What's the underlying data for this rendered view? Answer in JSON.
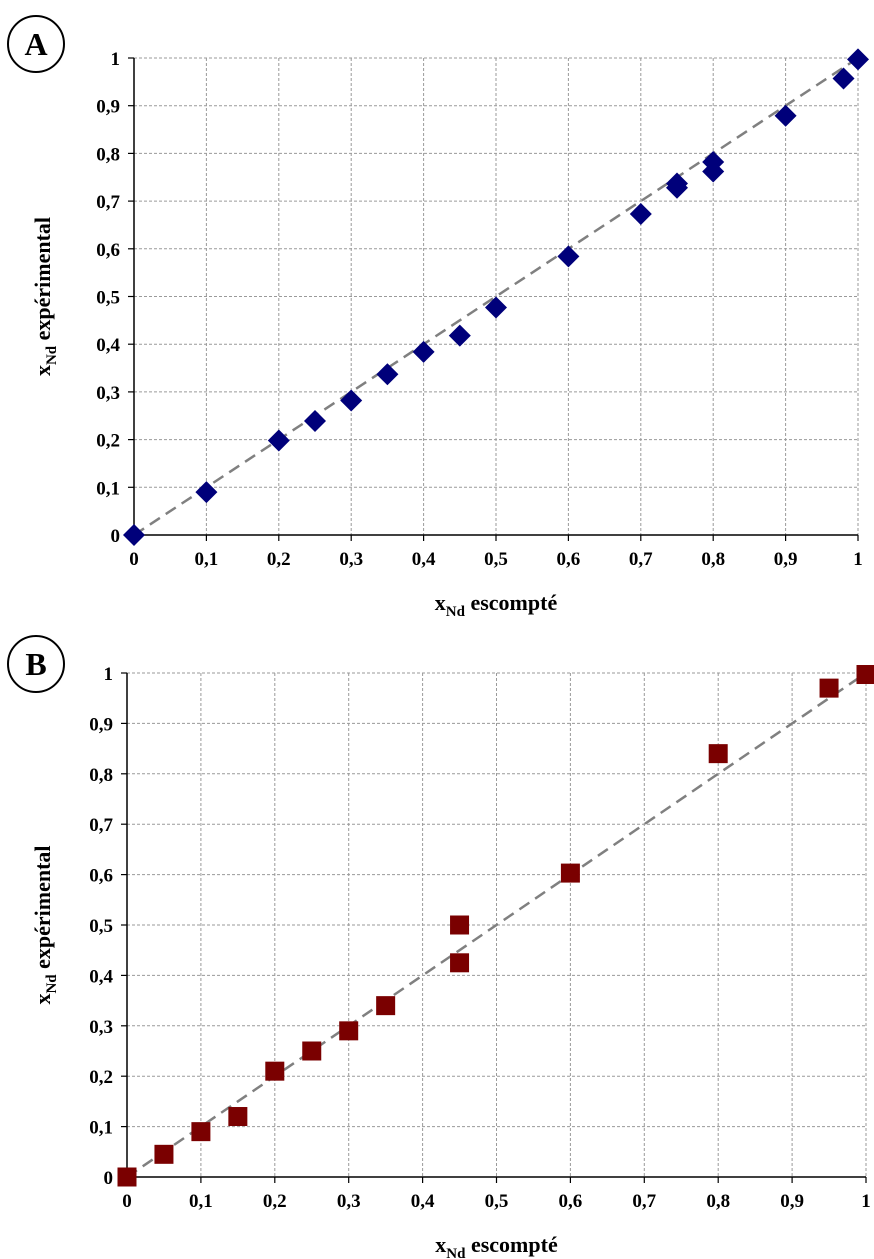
{
  "colors": {
    "panel_a_marker": "#00007a",
    "panel_b_marker": "#7a0000",
    "grid": "#9a9a9a",
    "reference_line": "#808080"
  },
  "chart_data": [
    {
      "panel_label": "A",
      "type": "scatter",
      "marker": "diamond",
      "xlabel_main": "x",
      "xlabel_sub": "Nd",
      "xlabel_rest": " escompté",
      "ylabel_main": "x",
      "ylabel_sub": "Nd",
      "ylabel_rest": " expérimental",
      "xlim": [
        0,
        1
      ],
      "ylim": [
        0,
        1
      ],
      "grid": true,
      "x_ticks": [
        "0",
        "0,1",
        "0,2",
        "0,3",
        "0,4",
        "0,5",
        "0,6",
        "0,7",
        "0,8",
        "0,9",
        "1"
      ],
      "y_ticks": [
        "0",
        "0,1",
        "0,2",
        "0,3",
        "0,4",
        "0,5",
        "0,6",
        "0,7",
        "0,8",
        "0,9",
        "1"
      ],
      "reference_line": {
        "style": "dashed",
        "from": [
          0,
          0
        ],
        "to": [
          1,
          1
        ]
      },
      "points": [
        {
          "x": 0,
          "y": 0
        },
        {
          "x": 0.1,
          "y": 0.09
        },
        {
          "x": 0.2,
          "y": 0.198
        },
        {
          "x": 0.25,
          "y": 0.239
        },
        {
          "x": 0.3,
          "y": 0.282
        },
        {
          "x": 0.35,
          "y": 0.337
        },
        {
          "x": 0.4,
          "y": 0.384
        },
        {
          "x": 0.45,
          "y": 0.418
        },
        {
          "x": 0.5,
          "y": 0.477
        },
        {
          "x": 0.6,
          "y": 0.584
        },
        {
          "x": 0.7,
          "y": 0.673
        },
        {
          "x": 0.75,
          "y": 0.728
        },
        {
          "x": 0.75,
          "y": 0.737
        },
        {
          "x": 0.8,
          "y": 0.762
        },
        {
          "x": 0.8,
          "y": 0.782
        },
        {
          "x": 0.9,
          "y": 0.879
        },
        {
          "x": 0.98,
          "y": 0.957
        },
        {
          "x": 1.0,
          "y": 0.997
        }
      ]
    },
    {
      "panel_label": "B",
      "type": "scatter",
      "marker": "square",
      "xlabel_main": "x",
      "xlabel_sub": "Nd",
      "xlabel_rest": " escompté",
      "ylabel_main": "x",
      "ylabel_sub": "Nd",
      "ylabel_rest": " expérimental",
      "xlim": [
        0,
        1
      ],
      "ylim": [
        0,
        1
      ],
      "grid": true,
      "x_ticks": [
        "0",
        "0,1",
        "0,2",
        "0,3",
        "0,4",
        "0,5",
        "0,6",
        "0,7",
        "0,8",
        "0,9",
        "1"
      ],
      "y_ticks": [
        "0",
        "0,1",
        "0,2",
        "0,3",
        "0,4",
        "0,5",
        "0,6",
        "0,7",
        "0,8",
        "0,9",
        "1"
      ],
      "reference_line": {
        "style": "dashed",
        "from": [
          0,
          0
        ],
        "to": [
          1,
          1
        ]
      },
      "points": [
        {
          "x": 0,
          "y": 0
        },
        {
          "x": 0.05,
          "y": 0.045
        },
        {
          "x": 0.1,
          "y": 0.09
        },
        {
          "x": 0.15,
          "y": 0.12
        },
        {
          "x": 0.2,
          "y": 0.21
        },
        {
          "x": 0.25,
          "y": 0.25
        },
        {
          "x": 0.3,
          "y": 0.29
        },
        {
          "x": 0.35,
          "y": 0.34
        },
        {
          "x": 0.45,
          "y": 0.425
        },
        {
          "x": 0.45,
          "y": 0.5
        },
        {
          "x": 0.6,
          "y": 0.603
        },
        {
          "x": 0.8,
          "y": 0.84
        },
        {
          "x": 0.95,
          "y": 0.97
        },
        {
          "x": 1.0,
          "y": 0.997
        }
      ]
    }
  ]
}
